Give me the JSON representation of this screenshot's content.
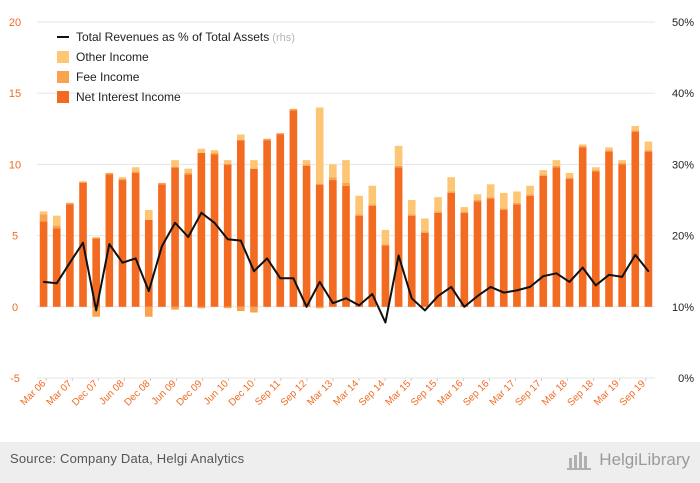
{
  "chart_data": {
    "type": "bar",
    "stacked": true,
    "left_axis": {
      "ylim": [
        -5,
        20
      ],
      "ticks": [
        "-5",
        "0",
        "5",
        "10",
        "15",
        "20"
      ]
    },
    "right_axis": {
      "ylim": [
        0,
        50
      ],
      "ticks": [
        "0%",
        "10%",
        "20%",
        "30%",
        "40%",
        "50%"
      ]
    },
    "tick_labels": [
      "Mar 06",
      "Mar 07",
      "Dec 07",
      "Jun 08",
      "Dec 08",
      "Jun 09",
      "Dec 09",
      "Jun 10",
      "Dec 10",
      "Sep 11",
      "Sep 12",
      "Mar 13",
      "Mar 14",
      "Sep 14",
      "Mar 15",
      "Sep 15",
      "Mar 16",
      "Sep 16",
      "Mar 17",
      "Sep 17",
      "Mar 18",
      "Sep 18",
      "Mar 19",
      "Sep 19"
    ],
    "series": [
      {
        "name": "Net Interest Income",
        "color": "#f26b21",
        "values": [
          6.0,
          5.5,
          7.2,
          8.7,
          4.8,
          9.3,
          8.9,
          9.4,
          6.1,
          8.6,
          9.8,
          9.3,
          10.8,
          10.7,
          10.0,
          11.7,
          9.7,
          11.7,
          12.1,
          13.8,
          9.9,
          8.6,
          8.9,
          8.5,
          6.4,
          7.1,
          4.3,
          9.8,
          6.4,
          5.2,
          6.6,
          8.0,
          6.6,
          7.4,
          7.6,
          6.8,
          7.2,
          7.8,
          9.2,
          9.8,
          9.0,
          11.2,
          9.5,
          10.9,
          10.0,
          12.3,
          10.9
        ]
      },
      {
        "name": "Fee Income",
        "color": "#f9a34f",
        "values": [
          0.5,
          0.2,
          0.1,
          0.1,
          -0.7,
          0.1,
          0.1,
          0.1,
          -0.7,
          0.1,
          -0.2,
          0.1,
          -0.1,
          0.1,
          -0.1,
          -0.3,
          -0.4,
          0.1,
          0.1,
          0.1,
          0.1,
          -0.1,
          0.2,
          0.2,
          0.1,
          0.1,
          0.1,
          0.1,
          0.1,
          0.1,
          0.1,
          0.1,
          0.1,
          0.1,
          0.1,
          0.1,
          0.1,
          0.1,
          0.1,
          0.1,
          0.1,
          0.1,
          0.1,
          0.1,
          0.1,
          0.1,
          0.1
        ]
      },
      {
        "name": "Other Income",
        "color": "#fcc674",
        "values": [
          0.2,
          0.7,
          0.0,
          0.0,
          0.1,
          0.0,
          0.1,
          0.3,
          0.7,
          0.0,
          0.5,
          0.3,
          0.3,
          0.2,
          0.3,
          0.4,
          0.6,
          0.0,
          0.0,
          0.0,
          0.3,
          5.4,
          0.9,
          1.6,
          1.3,
          1.3,
          1.0,
          1.4,
          1.0,
          0.9,
          1.0,
          1.0,
          0.3,
          0.4,
          0.9,
          1.1,
          0.8,
          0.6,
          0.3,
          0.4,
          0.3,
          0.1,
          0.2,
          0.2,
          0.2,
          0.3,
          0.6
        ]
      },
      {
        "name": "Total Revenues as % of Total Assets",
        "suffix": "(rhs)",
        "color": "#111111",
        "axis": "right",
        "values": [
          13.5,
          13.3,
          16.2,
          19.0,
          9.5,
          18.8,
          16.2,
          16.8,
          12.2,
          18.5,
          21.8,
          19.8,
          23.2,
          21.8,
          19.5,
          19.3,
          15.0,
          16.8,
          14.0,
          14.0,
          10.0,
          13.5,
          10.5,
          11.2,
          10.2,
          11.8,
          7.8,
          17.2,
          11.2,
          9.5,
          11.5,
          12.8,
          10.0,
          11.5,
          12.8,
          12.0,
          12.3,
          12.8,
          14.3,
          14.7,
          13.5,
          15.5,
          13.0,
          14.5,
          14.2,
          17.3,
          15.0
        ]
      }
    ]
  },
  "footer": {
    "source": "Source: Company Data, Helgi Analytics",
    "logo_text": "HelgiLibrary"
  }
}
